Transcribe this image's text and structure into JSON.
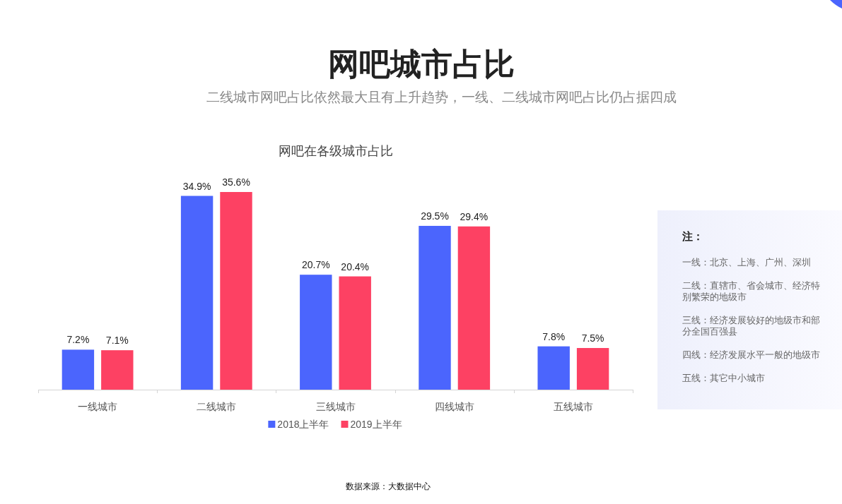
{
  "chart_data": [
    {
      "type": "bar",
      "title": "网吧城市占比",
      "subtitle": "二线城市网吧占比依然最大且有上升趋势，一线、二线城市网吧占比仍占据四成",
      "annotations": [
        "网吧在各级城市占比",
        "数据来源：大数据中心"
      ],
      "categories": [
        "一线城市",
        "二线城市",
        "三线城市",
        "四线城市",
        "五线城市"
      ],
      "series": [
        {
          "name": "2018上半年",
          "color": "#4b65fd",
          "values": [
            7.2,
            34.9,
            20.7,
            29.5,
            7.8
          ],
          "value_labels": [
            "7.2%",
            "34.9%",
            "20.7%",
            "29.5%",
            "7.8%"
          ]
        },
        {
          "name": "2019上半年",
          "color": "#fd4163",
          "values": [
            7.1,
            35.6,
            20.4,
            29.4,
            7.5
          ],
          "value_labels": [
            "7.1%",
            "35.6%",
            "20.4%",
            "29.4%",
            "7.5%"
          ]
        }
      ],
      "legend": "bottom",
      "tick_labels": "x"
    },
    {
      "type": "other",
      "title": "注：",
      "annotations": [
        "一线：北京、上海、广州、深圳",
        "二线：直辖市、省会城市、经济特别繁荣的地级市",
        "三线：经济发展较好的地级市和部分全国百强县",
        "四线：经济发展水平一般的地级市",
        "五线：其它中小城市"
      ]
    }
  ]
}
